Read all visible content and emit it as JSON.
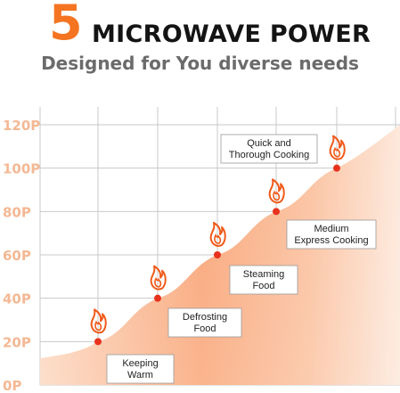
{
  "header": {
    "number": "5",
    "title": "MICROWAVE POWER",
    "subtitle": "Designed for You diverse needs"
  },
  "colors": {
    "accent": "#f47421",
    "flame": "#f05a1a",
    "point": "#e8321e",
    "tick": "#f4b894",
    "grid": "#c9c9c9",
    "label_border": "#9a9a9a"
  },
  "chart_data": {
    "type": "area",
    "title": "",
    "xlabel": "",
    "ylabel": "",
    "y_ticks": [
      "0P",
      "20P",
      "40P",
      "60P",
      "80P",
      "100P",
      "120P"
    ],
    "ylim": [
      0,
      120
    ],
    "grid": true,
    "series": [
      {
        "values": [
          20,
          40,
          60,
          80,
          100
        ],
        "labels": [
          [
            "Keeping",
            "Warm"
          ],
          [
            "Defrosting",
            "Food"
          ],
          [
            "Steaming",
            "Food"
          ],
          [
            "Medium",
            "Express Cooking"
          ],
          [
            "Quick and",
            "Thorough Cooking"
          ]
        ]
      }
    ]
  }
}
